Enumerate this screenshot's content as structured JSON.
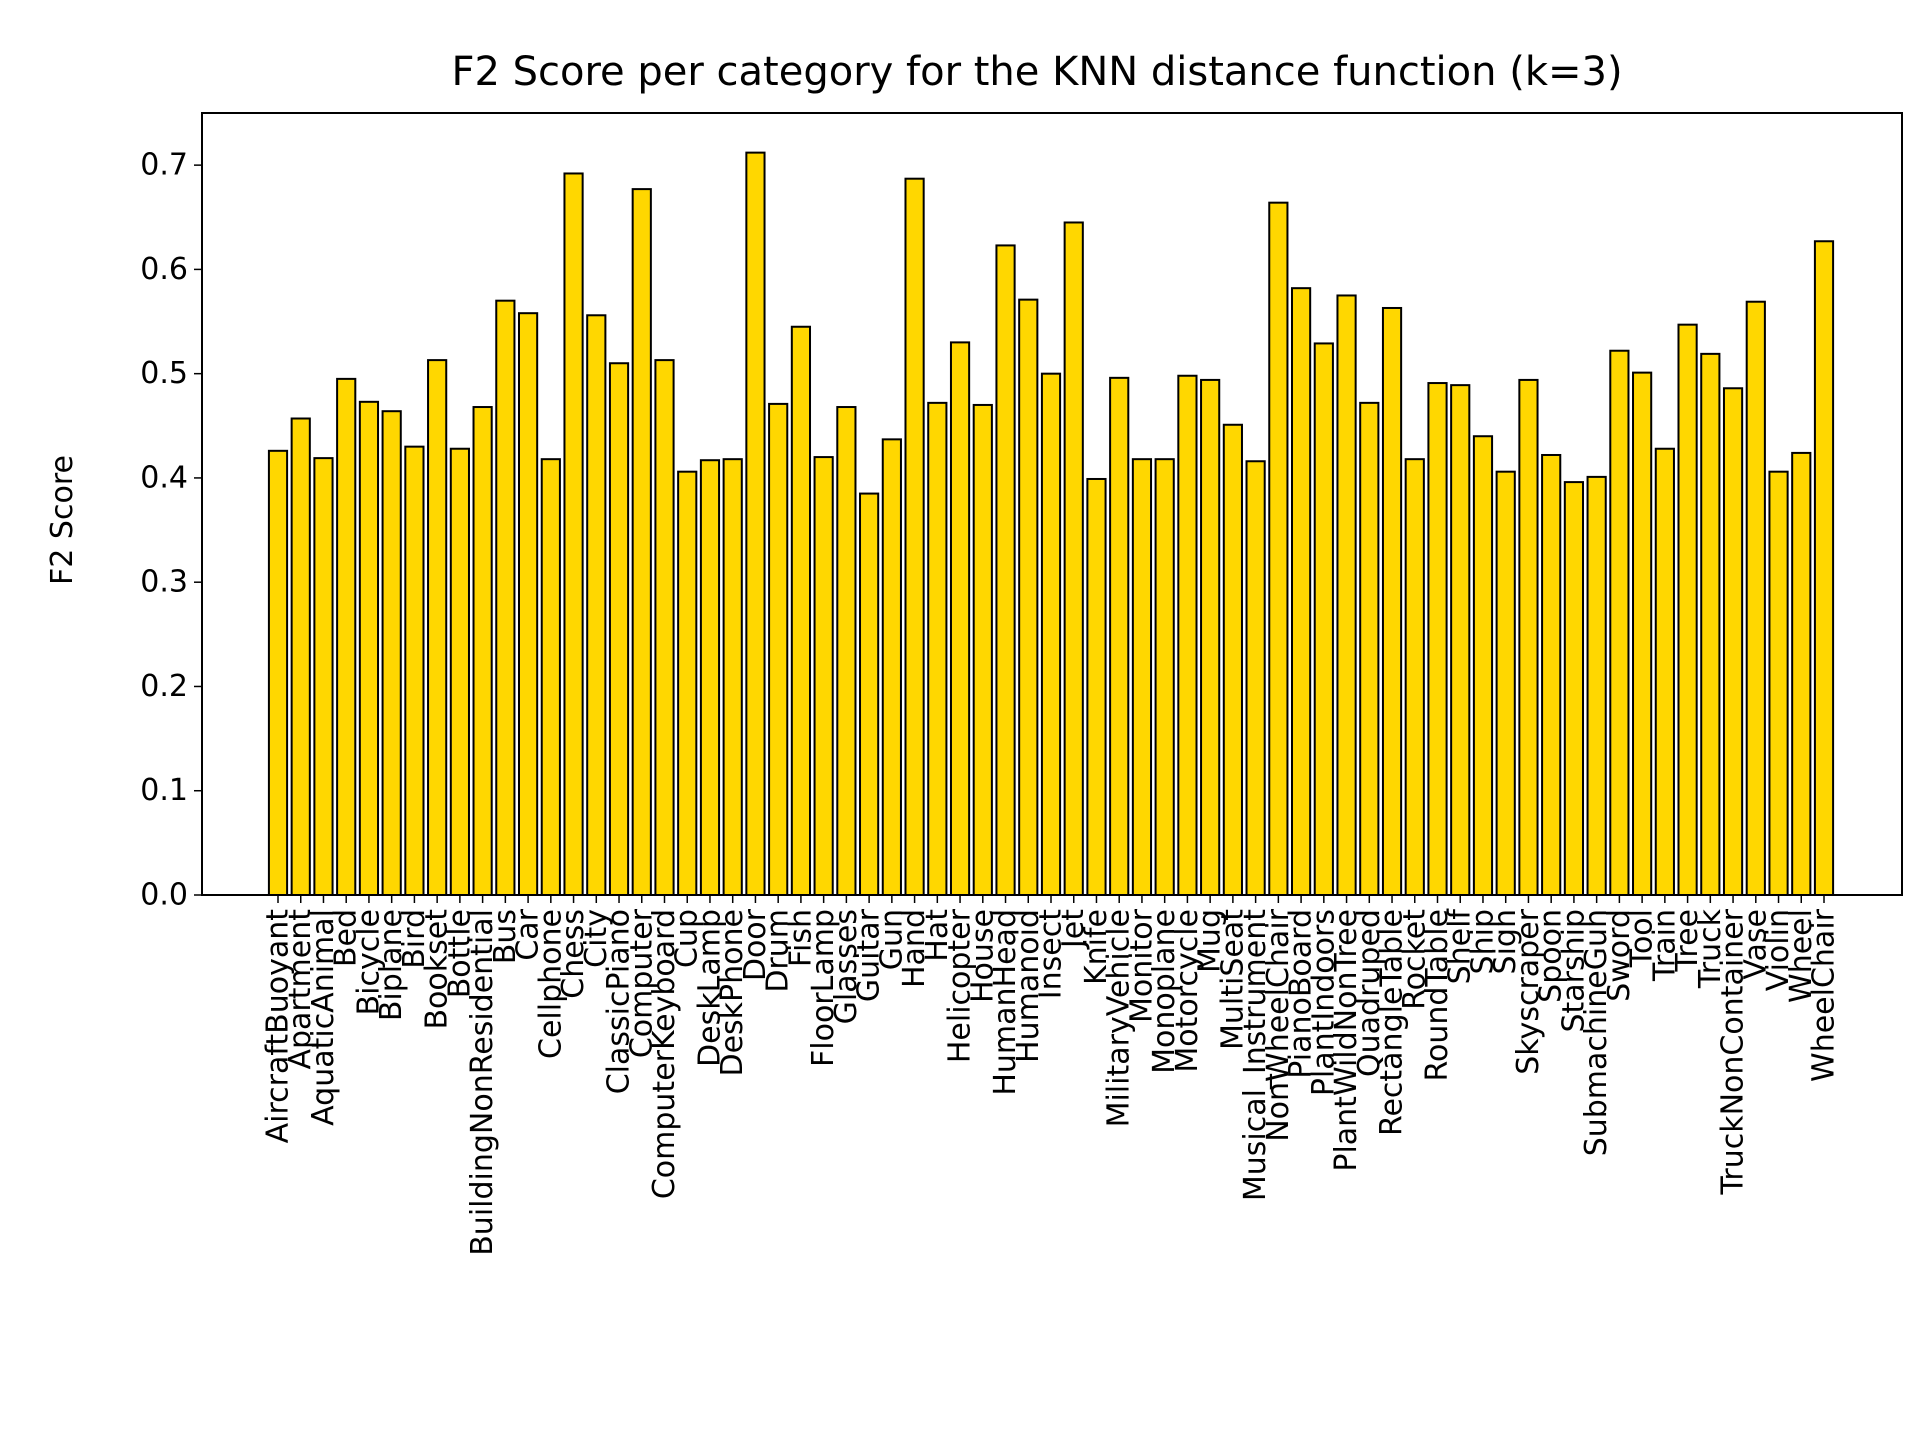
{
  "chart_data": {
    "type": "bar",
    "title": "F2 Score per category for the KNN distance function (k=3)",
    "xlabel": "",
    "ylabel": "F2 Score",
    "ylim": [
      0,
      0.75
    ],
    "yticks": [
      "0.0",
      "0.1",
      "0.2",
      "0.3",
      "0.4",
      "0.5",
      "0.6",
      "0.7"
    ],
    "grid": false,
    "bar_color": "#FFD700",
    "edge_color": "#000000",
    "categories": [
      "AircraftBuoyant",
      "Apartment",
      "AquaticAnimal",
      "Bed",
      "Bicycle",
      "Biplane",
      "Bird",
      "Bookset",
      "Bottle",
      "BuildingNonResidential",
      "Bus",
      "Car",
      "Cellphone",
      "Chess",
      "City",
      "ClassicPiano",
      "Computer",
      "ComputerKeyboard",
      "Cup",
      "DeskLamp",
      "DeskPhone",
      "Door",
      "Drum",
      "Fish",
      "FloorLamp",
      "Glasses",
      "Guitar",
      "Gun",
      "Hand",
      "Hat",
      "Helicopter",
      "House",
      "HumanHead",
      "Humanoid",
      "Insect",
      "Jet",
      "Knife",
      "MilitaryVehicle",
      "Monitor",
      "Monoplane",
      "Motorcycle",
      "Mug",
      "MultiSeat",
      "Musical_Instrument",
      "NonWheelChair",
      "PianoBoard",
      "PlantIndoors",
      "PlantWildNonTree",
      "Quadruped",
      "RectangleTable",
      "Rocket",
      "RoundTable",
      "Shelf",
      "Ship",
      "Sign",
      "Skyscraper",
      "Spoon",
      "Starship",
      "SubmachineGun",
      "Sword",
      "Tool",
      "Train",
      "Tree",
      "Truck",
      "TruckNonContainer",
      "Vase",
      "Violin",
      "Wheel",
      "WheelChair"
    ],
    "values": [
      0.426,
      0.457,
      0.419,
      0.495,
      0.473,
      0.464,
      0.43,
      0.513,
      0.428,
      0.468,
      0.57,
      0.558,
      0.418,
      0.692,
      0.556,
      0.51,
      0.677,
      0.513,
      0.406,
      0.417,
      0.418,
      0.712,
      0.471,
      0.545,
      0.42,
      0.468,
      0.385,
      0.437,
      0.687,
      0.472,
      0.53,
      0.47,
      0.623,
      0.571,
      0.5,
      0.645,
      0.399,
      0.496,
      0.418,
      0.418,
      0.498,
      0.494,
      0.451,
      0.416,
      0.664,
      0.582,
      0.529,
      0.575,
      0.472,
      0.563,
      0.418,
      0.491,
      0.489,
      0.44,
      0.406,
      0.494,
      0.422,
      0.396,
      0.401,
      0.522,
      0.501,
      0.428,
      0.547,
      0.519,
      0.486,
      0.569,
      0.406,
      0.424,
      0.627
    ]
  }
}
